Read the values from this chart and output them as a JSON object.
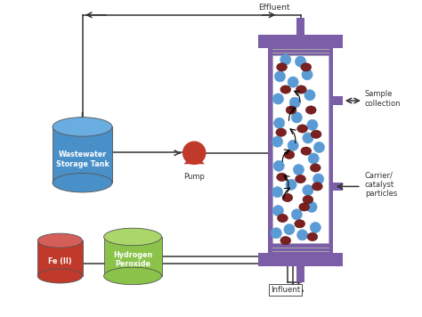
{
  "bg_color": "#ffffff",
  "effluent_label": "Effluent",
  "pump_label": "Pump",
  "wastewater_label": "Wastewater\nStorage Tank",
  "h2o2_label": "Hydrogen\nPeroxide",
  "fe_label": "Fe (II)",
  "influent_label": "Influent",
  "sample_label": "Sample\ncollection",
  "carrier_label": "Carrier/\ncatalyst\nparticles",
  "tank_color": "#4a90c8",
  "tank_top_color": "#6aade0",
  "h2o2_color": "#8bc34a",
  "h2o2_top_color": "#aad66a",
  "fe_color": "#c0392b",
  "fe_top_color": "#d45f58",
  "pump_body_color": "#c0392b",
  "reactor_wall_color": "#7b5ea7",
  "reactor_stripe_color": "#9d88c0",
  "blue_particle_color": "#5b9bd5",
  "blue_particle_edge": "#3a7abf",
  "red_particle_color": "#7a2020",
  "red_particle_edge": "#5a1010",
  "line_color": "#333333",
  "figsize": [
    4.74,
    3.56
  ],
  "dpi": 100,
  "xlim": [
    0,
    10
  ],
  "ylim": [
    0,
    8.5
  ]
}
